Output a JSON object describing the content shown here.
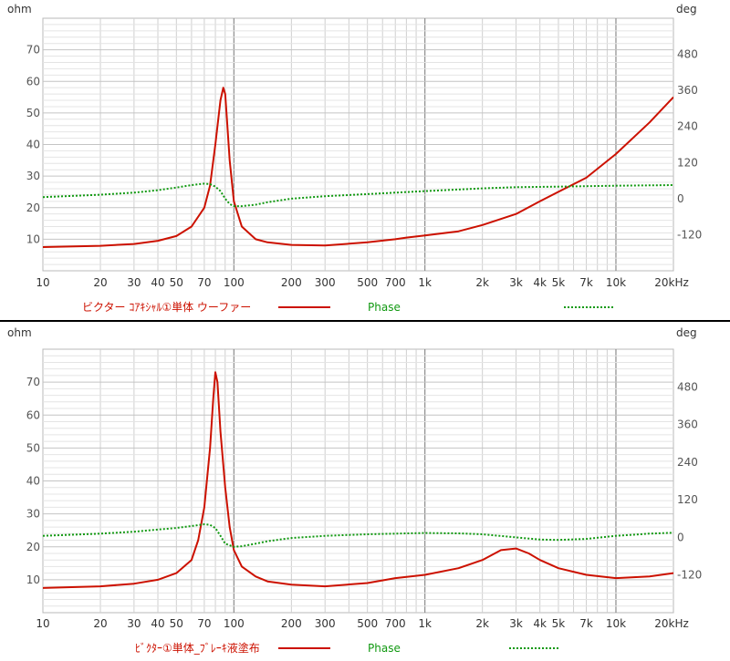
{
  "chart_data": [
    {
      "type": "line",
      "title": "",
      "xlabel": "",
      "ylabel": "ohm",
      "y2label": "deg",
      "xscale": "log",
      "xlim": [
        10,
        20000
      ],
      "ylim": [
        0,
        80
      ],
      "y2lim": [
        -240,
        600
      ],
      "grid": true,
      "x_ticks": [
        "10",
        "20",
        "30",
        "40",
        "50",
        "70",
        "100",
        "200",
        "300",
        "500",
        "700",
        "1k",
        "2k",
        "3k",
        "4k",
        "5k",
        "7k",
        "10k",
        "20kHz"
      ],
      "y_ticks": [
        "10",
        "20",
        "30",
        "40",
        "50",
        "60",
        "70"
      ],
      "y2_ticks": [
        "-120",
        "0",
        "120",
        "240",
        "360",
        "480"
      ],
      "legend_impedance": "ビクター ｺｱｷｼｬﾙ①単体 ウーファー",
      "legend_phase": "Phase",
      "impedance_color": "#cc1100",
      "phase_color": "#119911",
      "series": [
        {
          "name": "ビクター ｺｱｷｼｬﾙ①単体 ウーファー",
          "axis": "left",
          "x": [
            10,
            20,
            30,
            40,
            50,
            60,
            70,
            75,
            80,
            85,
            88,
            90,
            92,
            95,
            100,
            110,
            130,
            150,
            200,
            300,
            500,
            700,
            800,
            1000,
            1500,
            2000,
            3000,
            4000,
            5000,
            7000,
            10000,
            15000,
            20000
          ],
          "y": [
            7.5,
            7.9,
            8.5,
            9.5,
            11,
            14,
            20,
            27,
            40,
            54,
            58,
            56,
            48,
            35,
            22,
            14,
            10,
            9,
            8.2,
            8,
            9,
            10,
            10.5,
            11.2,
            12.5,
            14.5,
            18,
            22,
            25,
            29.5,
            37,
            47,
            55
          ]
        },
        {
          "name": "Phase",
          "axis": "right",
          "x": [
            10,
            20,
            30,
            40,
            50,
            60,
            70,
            75,
            80,
            85,
            90,
            95,
            100,
            110,
            130,
            150,
            200,
            300,
            500,
            1000,
            2000,
            3000,
            5000,
            10000,
            20000
          ],
          "y": [
            5,
            13,
            20,
            28,
            37,
            45,
            50,
            48,
            40,
            25,
            0,
            -18,
            -25,
            -25,
            -20,
            -12,
            0,
            8,
            15,
            25,
            34,
            38,
            40,
            43,
            45
          ]
        }
      ]
    },
    {
      "type": "line",
      "title": "",
      "xlabel": "",
      "ylabel": "ohm",
      "y2label": "deg",
      "xscale": "log",
      "xlim": [
        10,
        20000
      ],
      "ylim": [
        0,
        80
      ],
      "y2lim": [
        -240,
        600
      ],
      "grid": true,
      "x_ticks": [
        "10",
        "20",
        "30",
        "40",
        "50",
        "70",
        "100",
        "200",
        "300",
        "500",
        "700",
        "1k",
        "2k",
        "3k",
        "4k",
        "5k",
        "7k",
        "10k",
        "20kHz"
      ],
      "y_ticks": [
        "10",
        "20",
        "30",
        "40",
        "50",
        "60",
        "70"
      ],
      "y2_ticks": [
        "-120",
        "0",
        "120",
        "240",
        "360",
        "480"
      ],
      "legend_impedance": "ﾋﾞｸﾀｰ①単体_ﾌﾞﾚｰｷ液塗布",
      "legend_phase": "Phase",
      "impedance_color": "#cc1100",
      "phase_color": "#119911",
      "series": [
        {
          "name": "ﾋﾞｸﾀｰ①単体_ﾌﾞﾚｰｷ液塗布",
          "axis": "left",
          "x": [
            10,
            20,
            30,
            40,
            50,
            60,
            65,
            70,
            75,
            78,
            80,
            82,
            85,
            90,
            95,
            100,
            110,
            130,
            150,
            200,
            300,
            500,
            700,
            1000,
            1500,
            2000,
            2500,
            3000,
            3500,
            4000,
            5000,
            7000,
            10000,
            15000,
            20000
          ],
          "y": [
            7.5,
            8,
            8.8,
            10,
            12,
            16,
            22,
            32,
            50,
            65,
            73,
            70,
            55,
            38,
            26,
            19,
            14,
            11,
            9.5,
            8.5,
            8,
            9,
            10.5,
            11.5,
            13.5,
            16,
            19,
            19.5,
            18,
            16,
            13.5,
            11.5,
            10.5,
            11,
            12
          ]
        },
        {
          "name": "Phase",
          "axis": "right",
          "x": [
            10,
            20,
            30,
            40,
            50,
            60,
            70,
            75,
            80,
            85,
            90,
            100,
            110,
            130,
            150,
            200,
            300,
            500,
            700,
            1000,
            1500,
            2000,
            3000,
            4000,
            5000,
            7000,
            10000,
            15000,
            20000
          ],
          "y": [
            5,
            12,
            18,
            25,
            30,
            36,
            42,
            40,
            30,
            5,
            -20,
            -30,
            -28,
            -20,
            -12,
            -2,
            5,
            10,
            12,
            14,
            13,
            10,
            0,
            -7,
            -8,
            -5,
            5,
            12,
            15
          ]
        }
      ]
    }
  ]
}
